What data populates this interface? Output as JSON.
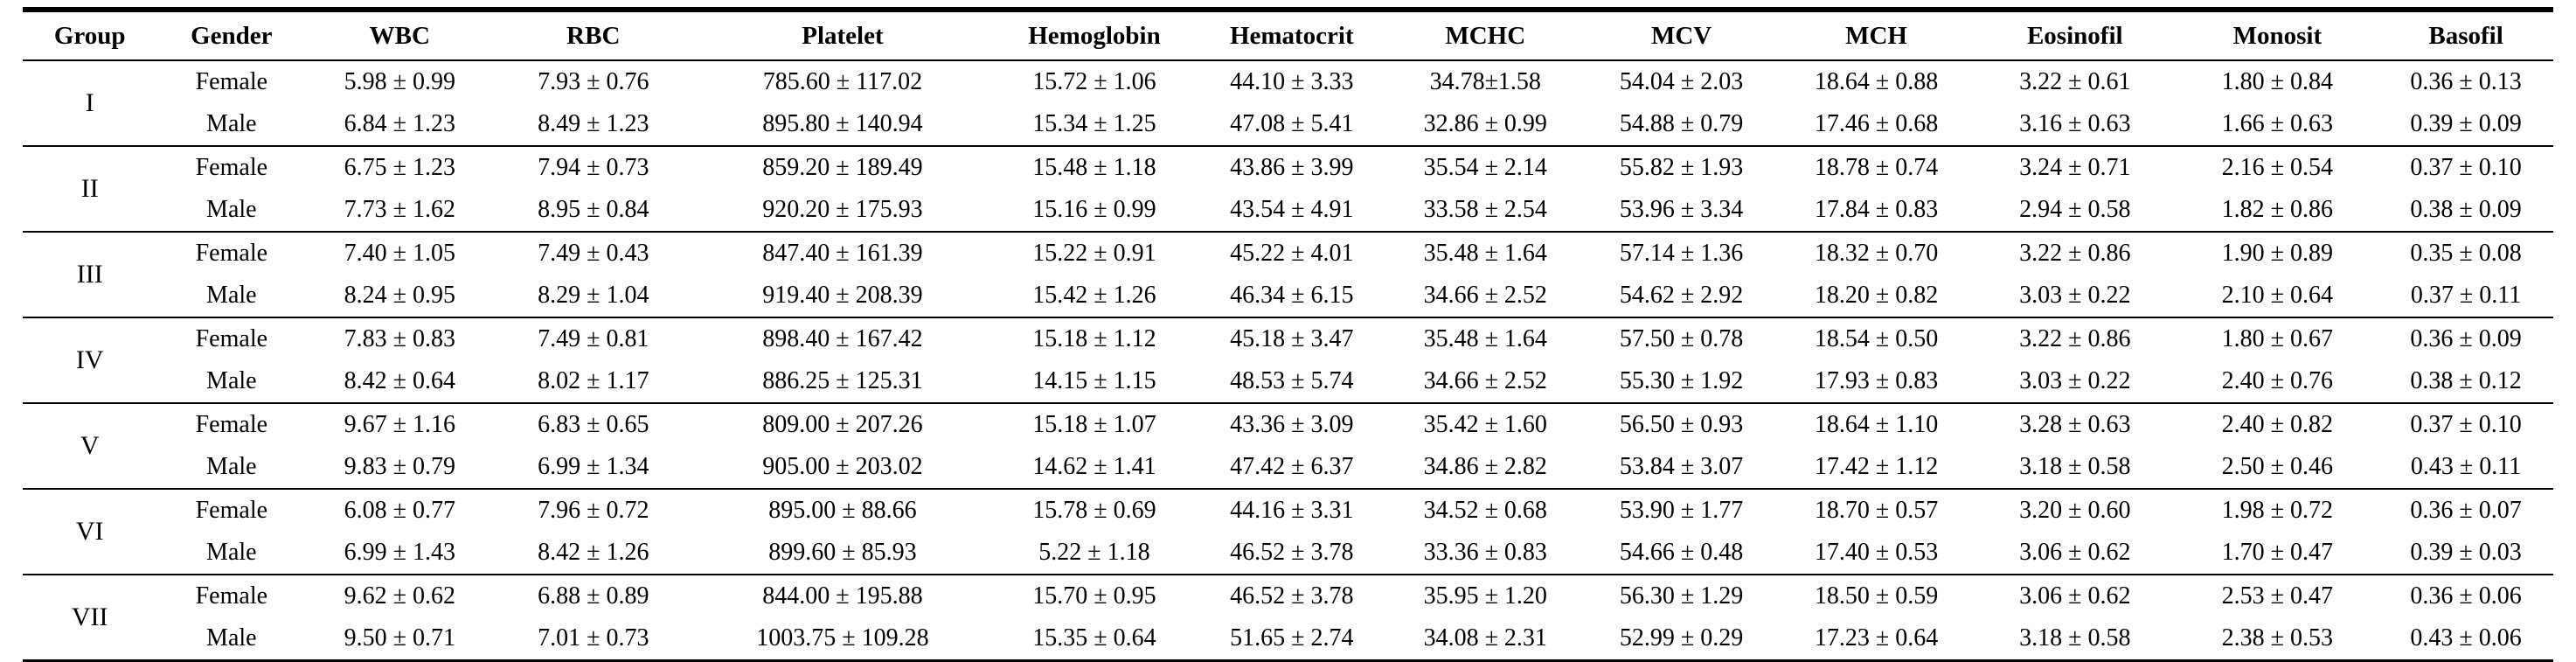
{
  "table": {
    "columns": [
      "Group",
      "Gender",
      "WBC",
      "RBC",
      "Platelet",
      "Hemoglobin",
      "Hematocrit",
      "MCHC",
      "MCV",
      "MCH",
      "Eosinofil",
      "Monosit",
      "Basofil"
    ],
    "groups": [
      {
        "label": "I",
        "rows": [
          {
            "gender": "Female",
            "values": [
              "5.98 ± 0.99",
              "7.93 ± 0.76",
              "785.60 ± 117.02",
              "15.72 ± 1.06",
              "44.10 ± 3.33",
              "34.78±1.58",
              "54.04 ± 2.03",
              "18.64 ± 0.88",
              "3.22 ± 0.61",
              "1.80 ± 0.84",
              "0.36 ± 0.13"
            ]
          },
          {
            "gender": "Male",
            "values": [
              "6.84 ± 1.23",
              "8.49 ± 1.23",
              "895.80 ± 140.94",
              "15.34 ± 1.25",
              "47.08 ± 5.41",
              "32.86 ± 0.99",
              "54.88 ± 0.79",
              "17.46 ± 0.68",
              "3.16 ± 0.63",
              "1.66 ± 0.63",
              "0.39 ± 0.09"
            ]
          }
        ]
      },
      {
        "label": "II",
        "rows": [
          {
            "gender": "Female",
            "values": [
              "6.75 ± 1.23",
              "7.94 ± 0.73",
              "859.20 ± 189.49",
              "15.48 ± 1.18",
              "43.86 ± 3.99",
              "35.54 ± 2.14",
              "55.82 ± 1.93",
              "18.78 ± 0.74",
              "3.24 ± 0.71",
              "2.16 ± 0.54",
              "0.37 ± 0.10"
            ]
          },
          {
            "gender": "Male",
            "values": [
              "7.73 ± 1.62",
              "8.95 ± 0.84",
              "920.20 ± 175.93",
              "15.16 ± 0.99",
              "43.54 ± 4.91",
              "33.58 ± 2.54",
              "53.96 ± 3.34",
              "17.84 ± 0.83",
              "2.94 ± 0.58",
              "1.82 ± 0.86",
              "0.38 ± 0.09"
            ]
          }
        ]
      },
      {
        "label": "III",
        "rows": [
          {
            "gender": "Female",
            "values": [
              "7.40 ± 1.05",
              "7.49 ± 0.43",
              "847.40 ± 161.39",
              "15.22 ± 0.91",
              "45.22 ± 4.01",
              "35.48 ± 1.64",
              "57.14 ± 1.36",
              "18.32 ± 0.70",
              "3.22 ± 0.86",
              "1.90 ± 0.89",
              "0.35 ± 0.08"
            ]
          },
          {
            "gender": "Male",
            "values": [
              "8.24 ± 0.95",
              "8.29 ± 1.04",
              "919.40 ± 208.39",
              "15.42 ± 1.26",
              "46.34 ± 6.15",
              "34.66 ± 2.52",
              "54.62 ± 2.92",
              "18.20 ± 0.82",
              "3.03 ± 0.22",
              "2.10 ± 0.64",
              "0.37 ± 0.11"
            ]
          }
        ]
      },
      {
        "label": "IV",
        "rows": [
          {
            "gender": "Female",
            "values": [
              "7.83 ± 0.83",
              "7.49 ± 0.81",
              "898.40 ± 167.42",
              "15.18 ± 1.12",
              "45.18 ± 3.47",
              "35.48 ± 1.64",
              "57.50 ± 0.78",
              "18.54 ± 0.50",
              "3.22 ± 0.86",
              "1.80 ± 0.67",
              "0.36 ± 0.09"
            ]
          },
          {
            "gender": "Male",
            "values": [
              "8.42 ± 0.64",
              "8.02 ± 1.17",
              "886.25 ± 125.31",
              "14.15 ± 1.15",
              "48.53 ± 5.74",
              "34.66 ± 2.52",
              "55.30 ± 1.92",
              "17.93 ± 0.83",
              "3.03 ± 0.22",
              "2.40 ± 0.76",
              "0.38 ± 0.12"
            ]
          }
        ]
      },
      {
        "label": "V",
        "rows": [
          {
            "gender": "Female",
            "values": [
              "9.67 ± 1.16",
              "6.83 ± 0.65",
              "809.00 ± 207.26",
              "15.18 ± 1.07",
              "43.36 ± 3.09",
              "35.42 ± 1.60",
              "56.50 ± 0.93",
              "18.64 ± 1.10",
              "3.28 ± 0.63",
              "2.40 ± 0.82",
              "0.37 ± 0.10"
            ]
          },
          {
            "gender": "Male",
            "values": [
              "9.83 ± 0.79",
              "6.99 ± 1.34",
              "905.00 ± 203.02",
              "14.62 ± 1.41",
              "47.42 ± 6.37",
              "34.86 ± 2.82",
              "53.84 ± 3.07",
              "17.42 ± 1.12",
              "3.18 ± 0.58",
              "2.50 ± 0.46",
              "0.43 ± 0.11"
            ]
          }
        ]
      },
      {
        "label": "VI",
        "rows": [
          {
            "gender": "Female",
            "values": [
              "6.08 ± 0.77",
              "7.96 ± 0.72",
              "895.00 ± 88.66",
              "15.78 ± 0.69",
              "44.16 ± 3.31",
              "34.52 ± 0.68",
              "53.90 ± 1.77",
              "18.70 ± 0.57",
              "3.20 ± 0.60",
              "1.98 ± 0.72",
              "0.36 ± 0.07"
            ]
          },
          {
            "gender": "Male",
            "values": [
              "6.99 ± 1.43",
              "8.42 ± 1.26",
              "899.60 ± 85.93",
              "5.22 ± 1.18",
              "46.52 ± 3.78",
              "33.36 ± 0.83",
              "54.66 ± 0.48",
              "17.40 ± 0.53",
              "3.06 ± 0.62",
              "1.70 ± 0.47",
              "0.39 ± 0.03"
            ]
          }
        ]
      },
      {
        "label": "VII",
        "rows": [
          {
            "gender": "Female",
            "values": [
              "9.62 ± 0.62",
              "6.88 ± 0.89",
              "844.00 ± 195.88",
              "15.70 ± 0.95",
              "46.52 ± 3.78",
              "35.95 ± 1.20",
              "56.30 ± 1.29",
              "18.50 ± 0.59",
              "3.06 ± 0.62",
              "2.53 ± 0.47",
              "0.36 ± 0.06"
            ]
          },
          {
            "gender": "Male",
            "values": [
              "9.50 ± 0.71",
              "7.01 ± 0.73",
              "1003.75 ± 109.28",
              "15.35 ± 0.64",
              "51.65 ± 2.74",
              "34.08 ± 2.31",
              "52.99 ± 0.29",
              "17.23 ± 0.64",
              "3.18 ± 0.58",
              "2.38 ± 0.53",
              "0.43 ± 0.06"
            ]
          }
        ]
      }
    ]
  },
  "colors": {
    "border": "#000000",
    "text": "#000000",
    "background": "#ffffff"
  }
}
